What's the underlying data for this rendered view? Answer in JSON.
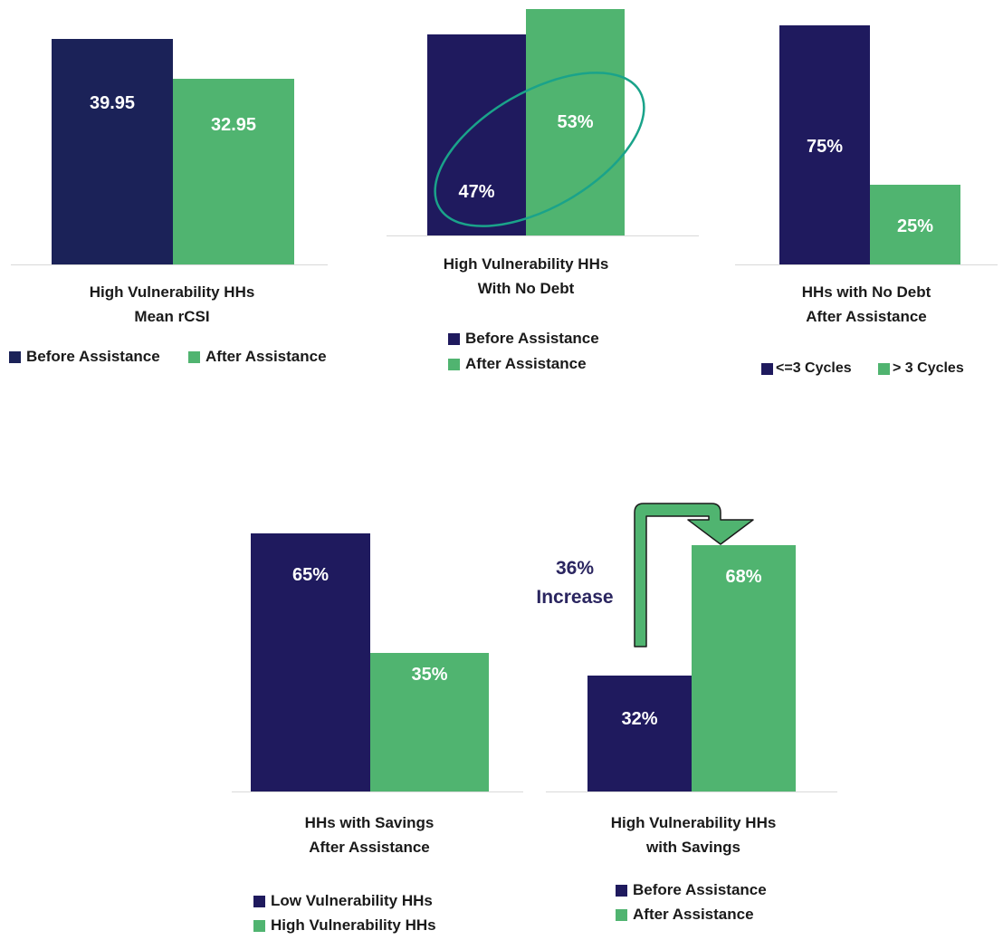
{
  "colors": {
    "navy": "#1b2258",
    "indigo": "#1f1a5e",
    "green": "#50b470",
    "outline_teal": "#1aa38a",
    "annotation_text": "#2b2660"
  },
  "chart_data": [
    {
      "type": "bar",
      "title_lines": [
        "High Vulnerability HHs",
        "Mean rCSI"
      ],
      "categories": [
        "Before Assistance",
        "After Assistance"
      ],
      "values": [
        39.95,
        32.95
      ],
      "value_labels": [
        "39.95",
        "32.95"
      ],
      "legend": [
        "Before Assistance",
        "After Assistance"
      ],
      "legend_layout": "horizontal"
    },
    {
      "type": "bar",
      "title_lines": [
        "High Vulnerability HHs",
        "With No Debt"
      ],
      "categories": [
        "Before Assistance",
        "After Assistance"
      ],
      "values": [
        47,
        53
      ],
      "value_labels": [
        "47%",
        "53%"
      ],
      "legend": [
        "Before Assistance",
        "After Assistance"
      ],
      "legend_layout": "vertical"
    },
    {
      "type": "bar",
      "title_lines": [
        "HHs with No Debt",
        "After Assistance"
      ],
      "categories": [
        "<=3 Cycles",
        "> 3 Cycles"
      ],
      "values": [
        75,
        25
      ],
      "value_labels": [
        "75%",
        "25%"
      ],
      "legend": [
        "<=3 Cycles",
        "> 3 Cycles"
      ],
      "legend_layout": "horizontal"
    },
    {
      "type": "bar",
      "title_lines": [
        "HHs with Savings",
        "After Assistance"
      ],
      "categories": [
        "Low Vulnerability HHs",
        "High Vulnerability HHs"
      ],
      "values": [
        65,
        35
      ],
      "value_labels": [
        "65%",
        "35%"
      ],
      "legend": [
        "Low Vulnerability HHs",
        "High Vulnerability HHs"
      ],
      "legend_layout": "vertical"
    },
    {
      "type": "bar",
      "title_lines": [
        "High Vulnerability HHs",
        "with Savings"
      ],
      "categories": [
        "Before Assistance",
        "After Assistance"
      ],
      "values": [
        32,
        68
      ],
      "value_labels": [
        "32%",
        "68%"
      ],
      "legend": [
        "Before Assistance",
        "After Assistance"
      ],
      "legend_layout": "vertical",
      "annotation": [
        "36%",
        "Increase"
      ]
    }
  ]
}
